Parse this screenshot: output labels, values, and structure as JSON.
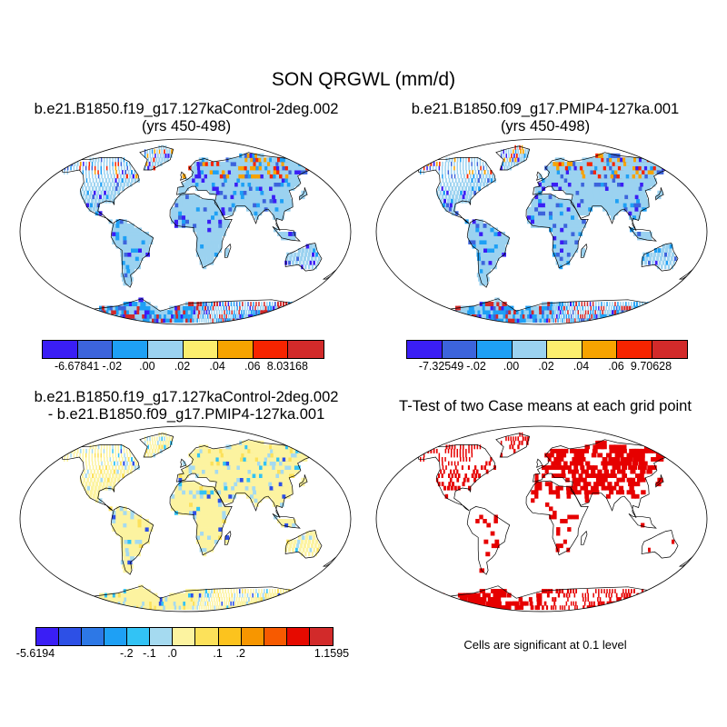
{
  "figure": {
    "title": "SON QRGWL (mm/d)"
  },
  "panels": [
    {
      "id": "p1",
      "title_line1": "b.e21.B1850.f19_g17.127kaControl-2deg.002",
      "title_line2": "(yrs 450-498)",
      "colorbar": {
        "colors": [
          "#3a1ef5",
          "#3c64dc",
          "#1ea0f5",
          "#9bd2f0",
          "#fcee6e",
          "#f7a300",
          "#f72400",
          "#d22a2a"
        ],
        "tick_labels": [
          "-6.67841",
          "-.02",
          ".00",
          ".02",
          ".04",
          ".06",
          "8.03168"
        ]
      }
    },
    {
      "id": "p2",
      "title_line1": "b.e21.B1850.f09_g17.PMIP4-127ka.001",
      "title_line2": "(yrs 450-498)",
      "colorbar": {
        "colors": [
          "#3a1ef5",
          "#3c64dc",
          "#1ea0f5",
          "#9bd2f0",
          "#fcee6e",
          "#f7a300",
          "#f72400",
          "#d22a2a"
        ],
        "tick_labels": [
          "-7.32549",
          "-.02",
          ".00",
          ".02",
          ".04",
          ".06",
          "9.70628"
        ]
      }
    },
    {
      "id": "p3",
      "title_line1": "b.e21.B1850.f19_g17.127kaControl-2deg.002",
      "title_line2": "- b.e21.B1850.f09_g17.PMIP4-127ka.001",
      "colorbar": {
        "colors": [
          "#3a1ef5",
          "#2d50e6",
          "#2d78e6",
          "#1ea0f5",
          "#32c3f5",
          "#a5daf0",
          "#fcf3a0",
          "#fce15a",
          "#fcc31e",
          "#f79600",
          "#f75a00",
          "#e60a00",
          "#d22a2a"
        ],
        "tick_labels": [
          "-5.6194",
          "-.2",
          "-.1",
          ".0",
          ".1",
          ".2",
          "1.1595"
        ]
      }
    },
    {
      "id": "p4",
      "title_line1": "T-Test of two Case means at each grid point",
      "note": "Cells are significant at 0.1 level",
      "significance_color": "#e60000"
    }
  ]
}
